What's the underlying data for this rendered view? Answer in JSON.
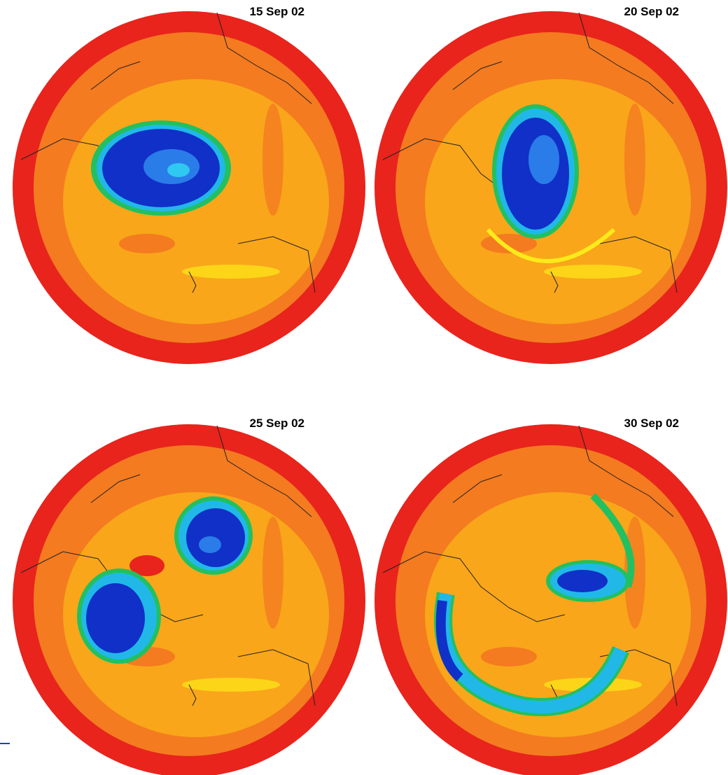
{
  "panels": [
    {
      "title": "15 Sep 02"
    },
    {
      "title": "20 Sep 02"
    },
    {
      "title": "25 Sep 02"
    },
    {
      "title": "30 Sep 02"
    }
  ]
}
